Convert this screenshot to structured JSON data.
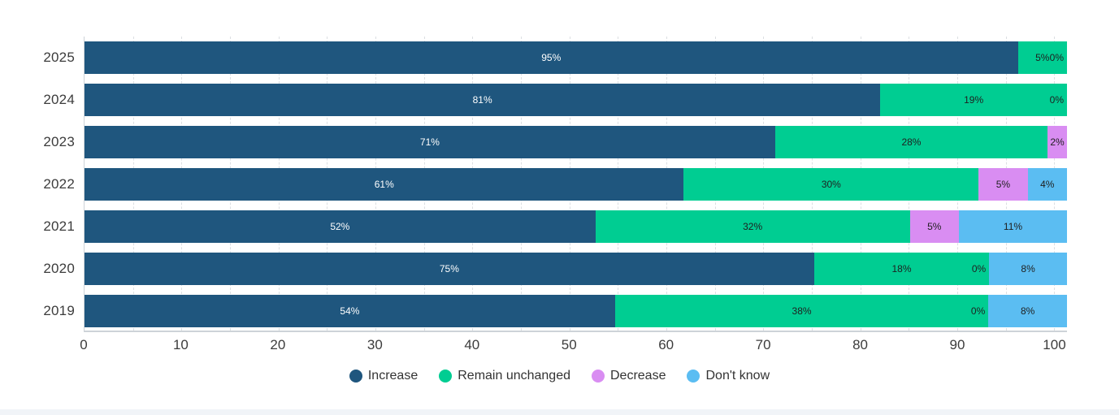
{
  "chart_data": {
    "type": "bar",
    "subtype": "horizontal-stacked-percent",
    "title": "",
    "categories": [
      "2025",
      "2024",
      "2023",
      "2022",
      "2021",
      "2020",
      "2019"
    ],
    "series": [
      {
        "name": "Increase",
        "key": "increase",
        "color": "#1f567e",
        "label_color": "#ffffff",
        "values": [
          95,
          81,
          71,
          61,
          52,
          75,
          54
        ]
      },
      {
        "name": "Remain unchanged",
        "key": "unchanged",
        "color": "#00cd92",
        "label_color": "#1f1f1f",
        "values": [
          5,
          19,
          28,
          30,
          32,
          18,
          38
        ]
      },
      {
        "name": "Decrease",
        "key": "decrease",
        "color": "#d98df2",
        "label_color": "#1f1f1f",
        "values": [
          0,
          0,
          2,
          5,
          5,
          0,
          0
        ]
      },
      {
        "name": "Don't know",
        "key": "dont-know",
        "color": "#5bbdf2",
        "label_color": "#1f1f1f",
        "values": [
          0,
          0,
          0,
          4,
          11,
          8,
          8
        ]
      }
    ],
    "segment_labels": [
      [
        "95%",
        "5%",
        "0%",
        null
      ],
      [
        "81%",
        "19%",
        "0%",
        null
      ],
      [
        "71%",
        "28%",
        "2%",
        null
      ],
      [
        "61%",
        "30%",
        "5%",
        "4%"
      ],
      [
        "52%",
        "32%",
        "5%",
        "11%"
      ],
      [
        "75%",
        "18%",
        "0%",
        "8%"
      ],
      [
        "54%",
        "38%",
        "0%",
        "8%"
      ]
    ],
    "x_ticks": [
      "0",
      "10",
      "20",
      "30",
      "40",
      "50",
      "60",
      "70",
      "80",
      "90",
      "100"
    ],
    "x_tick_values": [
      0,
      10,
      20,
      30,
      40,
      50,
      60,
      70,
      80,
      90,
      100
    ],
    "axis_max": 101.3,
    "gridline_step": 5,
    "grid": "vertical-dashed",
    "legend_position": "bottom",
    "xlabel": "",
    "ylabel": ""
  },
  "legend": {
    "items": [
      {
        "label": "Increase",
        "color": "#1f567e"
      },
      {
        "label": "Remain unchanged",
        "color": "#00cd92"
      },
      {
        "label": "Decrease",
        "color": "#d98df2"
      },
      {
        "label": "Don't know",
        "color": "#5bbdf2"
      }
    ]
  },
  "colors": {
    "background": "#ffffff",
    "axis_line": "#cdd3d8",
    "gridline": "#dcdfe3",
    "tick_text": "#3c3c3c",
    "bottom_strip": "#f1f4f8"
  }
}
